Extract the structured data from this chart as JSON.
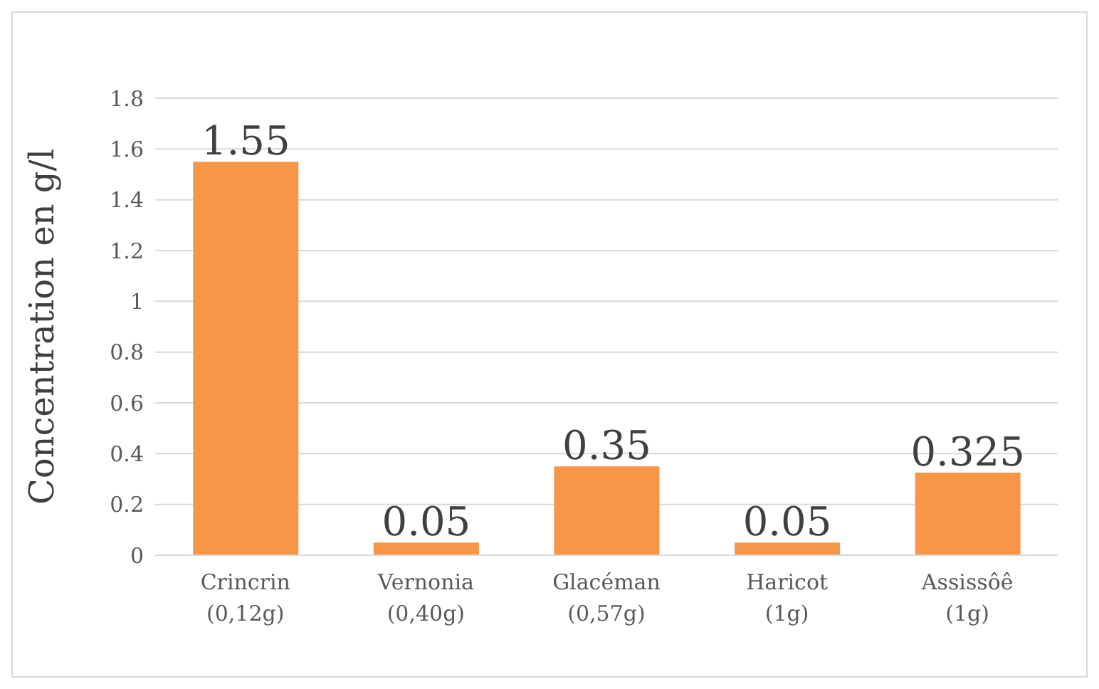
{
  "chart_data": {
    "type": "bar",
    "ylabel": "Concentration en g/l",
    "categories": [
      "Crincrin\n(0,12g)",
      "Vernonia\n(0,40g)",
      "Glacéman\n(0,57g)",
      "Haricot\n(1g)",
      "Assissôê\n(1g)"
    ],
    "values": [
      1.55,
      0.05,
      0.35,
      0.05,
      0.325
    ],
    "color": "#f79646",
    "ylim": [
      0,
      1.8
    ],
    "yticks": [
      0,
      0.2,
      0.4,
      0.6,
      0.8,
      1,
      1.2,
      1.4,
      1.6,
      1.8
    ],
    "grid": "y",
    "data_labels": true,
    "legend": false
  }
}
